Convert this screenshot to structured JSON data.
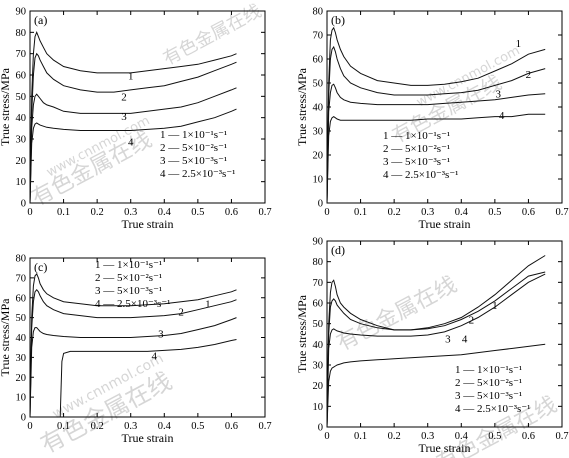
{
  "watermark": {
    "cn": "有色金属在线",
    "url": "www.cnnmol.com"
  },
  "chart_data": [
    {
      "type": "line",
      "panel": "(a)",
      "xlabel": "True strain",
      "ylabel": "True stress/MPa",
      "xlim": [
        0,
        0.7
      ],
      "ylim": [
        0,
        90
      ],
      "xticks": [
        "0",
        "0.1",
        "0.2",
        "0.3",
        "0.4",
        "0.5",
        "0.6",
        "0.7"
      ],
      "yticks": [
        "0",
        "10",
        "20",
        "30",
        "40",
        "50",
        "60",
        "70",
        "80",
        "90"
      ],
      "legend": [
        "1 —  1×10⁻¹s⁻¹",
        "2 —  5×10⁻²s⁻¹",
        "3 —  5×10⁻³s⁻¹",
        "4 —  2.5×10⁻³s⁻¹"
      ],
      "series": [
        {
          "name": "1",
          "x": [
            0,
            0.005,
            0.01,
            0.015,
            0.02,
            0.025,
            0.03,
            0.04,
            0.05,
            0.07,
            0.1,
            0.15,
            0.2,
            0.25,
            0.3,
            0.35,
            0.4,
            0.45,
            0.5,
            0.55,
            0.6,
            0.615
          ],
          "y": [
            0,
            50,
            70,
            78,
            80,
            78,
            76,
            73,
            70,
            67,
            64,
            62,
            61,
            61,
            61,
            62,
            63,
            64,
            65,
            67,
            69,
            70
          ],
          "label_at": [
            0.3,
            58
          ]
        },
        {
          "name": "2",
          "x": [
            0,
            0.005,
            0.01,
            0.015,
            0.02,
            0.025,
            0.03,
            0.04,
            0.05,
            0.07,
            0.1,
            0.15,
            0.2,
            0.25,
            0.3,
            0.35,
            0.4,
            0.45,
            0.5,
            0.55,
            0.6,
            0.615
          ],
          "y": [
            0,
            42,
            60,
            68,
            70,
            69,
            67,
            64,
            61,
            58,
            55,
            53,
            52,
            52,
            53,
            54,
            55,
            57,
            59,
            62,
            65,
            66
          ],
          "label_at": [
            0.28,
            48
          ]
        },
        {
          "name": "3",
          "x": [
            0,
            0.005,
            0.01,
            0.015,
            0.02,
            0.025,
            0.03,
            0.04,
            0.05,
            0.07,
            0.1,
            0.15,
            0.2,
            0.25,
            0.3,
            0.35,
            0.4,
            0.45,
            0.5,
            0.55,
            0.6,
            0.615
          ],
          "y": [
            0,
            35,
            46,
            50,
            51,
            50,
            49,
            47,
            46,
            45,
            43,
            42,
            42,
            42,
            42,
            43,
            44,
            45,
            47,
            50,
            53,
            54
          ],
          "label_at": [
            0.28,
            39
          ]
        },
        {
          "name": "4",
          "x": [
            0,
            0.005,
            0.01,
            0.015,
            0.02,
            0.025,
            0.03,
            0.04,
            0.05,
            0.07,
            0.1,
            0.15,
            0.2,
            0.25,
            0.3,
            0.35,
            0.4,
            0.45,
            0.5,
            0.55,
            0.6,
            0.615
          ],
          "y": [
            0,
            28,
            35,
            37,
            37.5,
            37,
            36.5,
            36,
            35.5,
            35,
            34.5,
            34,
            34,
            34,
            34,
            34.5,
            35,
            36,
            38,
            40,
            43,
            44
          ],
          "label_at": [
            0.3,
            27
          ]
        }
      ]
    },
    {
      "type": "line",
      "panel": "(b)",
      "xlabel": "True strain",
      "ylabel": "True stress/MPa",
      "xlim": [
        0,
        0.7
      ],
      "ylim": [
        0,
        80
      ],
      "xticks": [
        "0",
        "0.1",
        "0.2",
        "0.3",
        "0.4",
        "0.5",
        "0.6",
        "0.7"
      ],
      "yticks": [
        "0",
        "10",
        "20",
        "30",
        "40",
        "50",
        "60",
        "70",
        "80"
      ],
      "legend": [
        "1 —  1×10⁻¹s⁻¹",
        "2 —  5×10⁻²s⁻¹",
        "3 —  5×10⁻³s⁻¹",
        "4 —  2.5×10⁻³s⁻¹"
      ],
      "series": [
        {
          "name": "1",
          "x": [
            0,
            0.005,
            0.01,
            0.015,
            0.02,
            0.025,
            0.03,
            0.04,
            0.05,
            0.07,
            0.1,
            0.15,
            0.2,
            0.25,
            0.3,
            0.35,
            0.4,
            0.45,
            0.5,
            0.55,
            0.6,
            0.65
          ],
          "y": [
            0,
            50,
            68,
            72,
            73,
            71,
            68,
            64,
            61,
            57,
            54,
            51,
            50,
            49,
            49,
            49.5,
            50.5,
            52,
            55,
            58,
            62,
            64
          ],
          "label_at": [
            0.57,
            65
          ]
        },
        {
          "name": "2",
          "x": [
            0,
            0.005,
            0.01,
            0.015,
            0.02,
            0.025,
            0.03,
            0.04,
            0.05,
            0.07,
            0.1,
            0.15,
            0.2,
            0.25,
            0.3,
            0.35,
            0.4,
            0.45,
            0.5,
            0.55,
            0.6,
            0.65
          ],
          "y": [
            0,
            45,
            60,
            64,
            65,
            63,
            60,
            56,
            53,
            50,
            48,
            46,
            45,
            45,
            45,
            45.5,
            46,
            47,
            49,
            51,
            54,
            56
          ],
          "label_at": [
            0.6,
            52
          ]
        },
        {
          "name": "3",
          "x": [
            0,
            0.005,
            0.01,
            0.015,
            0.02,
            0.025,
            0.03,
            0.04,
            0.05,
            0.07,
            0.1,
            0.15,
            0.2,
            0.25,
            0.3,
            0.35,
            0.4,
            0.45,
            0.5,
            0.55,
            0.6,
            0.65
          ],
          "y": [
            0,
            38,
            46,
            49,
            49.5,
            48,
            46,
            44,
            43,
            42,
            41.5,
            41,
            41,
            41,
            41,
            41.5,
            42,
            42.5,
            43,
            44,
            45,
            45.5
          ],
          "label_at": [
            0.51,
            44
          ]
        },
        {
          "name": "4",
          "x": [
            0,
            0.005,
            0.01,
            0.015,
            0.02,
            0.025,
            0.03,
            0.04,
            0.05,
            0.07,
            0.1,
            0.15,
            0.2,
            0.25,
            0.3,
            0.35,
            0.4,
            0.45,
            0.5,
            0.55,
            0.6,
            0.65
          ],
          "y": [
            0,
            28,
            34,
            35.5,
            36,
            35.5,
            35,
            34.5,
            34.5,
            34.5,
            34.5,
            34.5,
            34.5,
            34.5,
            35,
            35,
            35,
            35.5,
            36,
            36,
            37,
            37
          ],
          "label_at": [
            0.52,
            35
          ]
        }
      ]
    },
    {
      "type": "line",
      "panel": "(c)",
      "xlabel": "True strain",
      "ylabel": "True stress/MPa",
      "xlim": [
        0,
        0.7
      ],
      "ylim": [
        0,
        80
      ],
      "xticks": [
        "0",
        "0.1",
        "0.2",
        "0.3",
        "0.4",
        "0.5",
        "0.6",
        "0.7"
      ],
      "yticks": [
        "0",
        "10",
        "20",
        "30",
        "40",
        "50",
        "60",
        "70",
        "80"
      ],
      "legend": [
        "1 —  1×10⁻¹s⁻¹",
        "2 —  5×10⁻²s⁻¹",
        "3 —  5×10⁻³s⁻¹",
        "4 —  2.5×10⁻³s⁻¹"
      ],
      "series": [
        {
          "name": "1",
          "x": [
            0,
            0.005,
            0.01,
            0.015,
            0.02,
            0.025,
            0.03,
            0.04,
            0.05,
            0.07,
            0.1,
            0.15,
            0.2,
            0.25,
            0.3,
            0.35,
            0.4,
            0.45,
            0.5,
            0.55,
            0.6,
            0.615
          ],
          "y": [
            0,
            50,
            66,
            71,
            72,
            70,
            67,
            64,
            62,
            60,
            58,
            57,
            56,
            56,
            56,
            56.5,
            57,
            58,
            59,
            61,
            63,
            64
          ],
          "label_at": [
            0.53,
            55
          ]
        },
        {
          "name": "2",
          "x": [
            0,
            0.005,
            0.01,
            0.015,
            0.02,
            0.025,
            0.03,
            0.04,
            0.05,
            0.07,
            0.1,
            0.15,
            0.2,
            0.25,
            0.3,
            0.35,
            0.4,
            0.45,
            0.5,
            0.55,
            0.6,
            0.615
          ],
          "y": [
            0,
            45,
            58,
            63,
            64,
            63,
            61,
            58,
            56,
            54,
            52,
            51,
            50,
            50,
            50,
            50.5,
            51,
            52,
            54,
            56,
            58,
            59
          ],
          "label_at": [
            0.45,
            51
          ]
        },
        {
          "name": "3",
          "x": [
            0,
            0.005,
            0.01,
            0.015,
            0.02,
            0.025,
            0.03,
            0.04,
            0.05,
            0.07,
            0.1,
            0.15,
            0.2,
            0.25,
            0.3,
            0.35,
            0.4,
            0.45,
            0.5,
            0.55,
            0.6,
            0.615
          ],
          "y": [
            0,
            35,
            43,
            45,
            45,
            44,
            43,
            42,
            41.5,
            41,
            40.5,
            40,
            40,
            40,
            40,
            40.5,
            41,
            42,
            44,
            46,
            49,
            50
          ],
          "label_at": [
            0.39,
            40
          ]
        },
        {
          "name": "4",
          "x": [
            0.09,
            0.095,
            0.1,
            0.12,
            0.15,
            0.2,
            0.25,
            0.3,
            0.35,
            0.4,
            0.45,
            0.5,
            0.55,
            0.6,
            0.615
          ],
          "y": [
            0,
            28,
            32,
            33,
            33,
            33,
            33,
            33,
            33,
            33.5,
            34,
            35,
            36.5,
            38.5,
            39
          ],
          "label_at": [
            0.37,
            29
          ]
        }
      ]
    },
    {
      "type": "line",
      "panel": "(d)",
      "xlabel": "True strain",
      "ylabel": "True stress/MPa",
      "xlim": [
        0,
        0.7
      ],
      "ylim": [
        0,
        90
      ],
      "xticks": [
        "0",
        "0.1",
        "0.2",
        "0.3",
        "0.4",
        "0.5",
        "0.6",
        "0.7"
      ],
      "yticks": [
        "0",
        "10",
        "20",
        "30",
        "40",
        "50",
        "60",
        "70",
        "80",
        "90"
      ],
      "legend": [
        "1 —  1×10⁻¹s⁻¹",
        "2 —  5×10⁻²s⁻¹",
        "3 —  5×10⁻³s⁻¹",
        "4 —  2.5×10⁻³s⁻¹"
      ],
      "series": [
        {
          "name": "1",
          "x": [
            0,
            0.005,
            0.01,
            0.015,
            0.02,
            0.025,
            0.03,
            0.04,
            0.05,
            0.07,
            0.1,
            0.15,
            0.2,
            0.25,
            0.3,
            0.35,
            0.4,
            0.45,
            0.5,
            0.55,
            0.6,
            0.65
          ],
          "y": [
            0,
            50,
            65,
            70,
            71,
            68,
            64,
            60,
            58,
            55,
            52,
            49,
            47,
            47,
            47.5,
            49,
            52,
            56,
            61,
            67,
            73,
            75
          ],
          "label_at": [
            0.5,
            57
          ]
        },
        {
          "name": "2",
          "x": [
            0,
            0.005,
            0.01,
            0.015,
            0.02,
            0.025,
            0.03,
            0.04,
            0.05,
            0.07,
            0.1,
            0.15,
            0.2,
            0.25,
            0.3,
            0.35,
            0.4,
            0.45,
            0.5,
            0.55,
            0.6,
            0.65
          ],
          "y": [
            0,
            45,
            58,
            61,
            62,
            61,
            59,
            57,
            55,
            52,
            50,
            48,
            47,
            47,
            48,
            50,
            53,
            58,
            64,
            71,
            78,
            83
          ],
          "label_at": [
            0.43,
            50
          ]
        },
        {
          "name": "3",
          "x": [
            0,
            0.005,
            0.01,
            0.015,
            0.02,
            0.025,
            0.03,
            0.04,
            0.05,
            0.07,
            0.1,
            0.15,
            0.2,
            0.25,
            0.3,
            0.35,
            0.4,
            0.45,
            0.5,
            0.55,
            0.6,
            0.65
          ],
          "y": [
            0,
            38,
            45,
            47,
            47.5,
            47,
            46.5,
            46,
            45.5,
            45,
            44.5,
            44,
            44,
            44,
            44.5,
            46,
            49,
            53,
            58,
            64,
            70,
            74
          ],
          "label_at": [
            0.36,
            41
          ]
        },
        {
          "name": "4",
          "x": [
            0,
            0.005,
            0.01,
            0.015,
            0.02,
            0.025,
            0.03,
            0.04,
            0.05,
            0.07,
            0.1,
            0.15,
            0.2,
            0.25,
            0.3,
            0.35,
            0.4,
            0.45,
            0.5,
            0.55,
            0.6,
            0.65
          ],
          "y": [
            0,
            22,
            27,
            28.5,
            29,
            29.5,
            30,
            30.5,
            31,
            31.5,
            32,
            32.5,
            33,
            33.5,
            34,
            34.5,
            35,
            36,
            37,
            38,
            39,
            40
          ],
          "label_at": [
            0.41,
            41
          ]
        }
      ]
    }
  ]
}
